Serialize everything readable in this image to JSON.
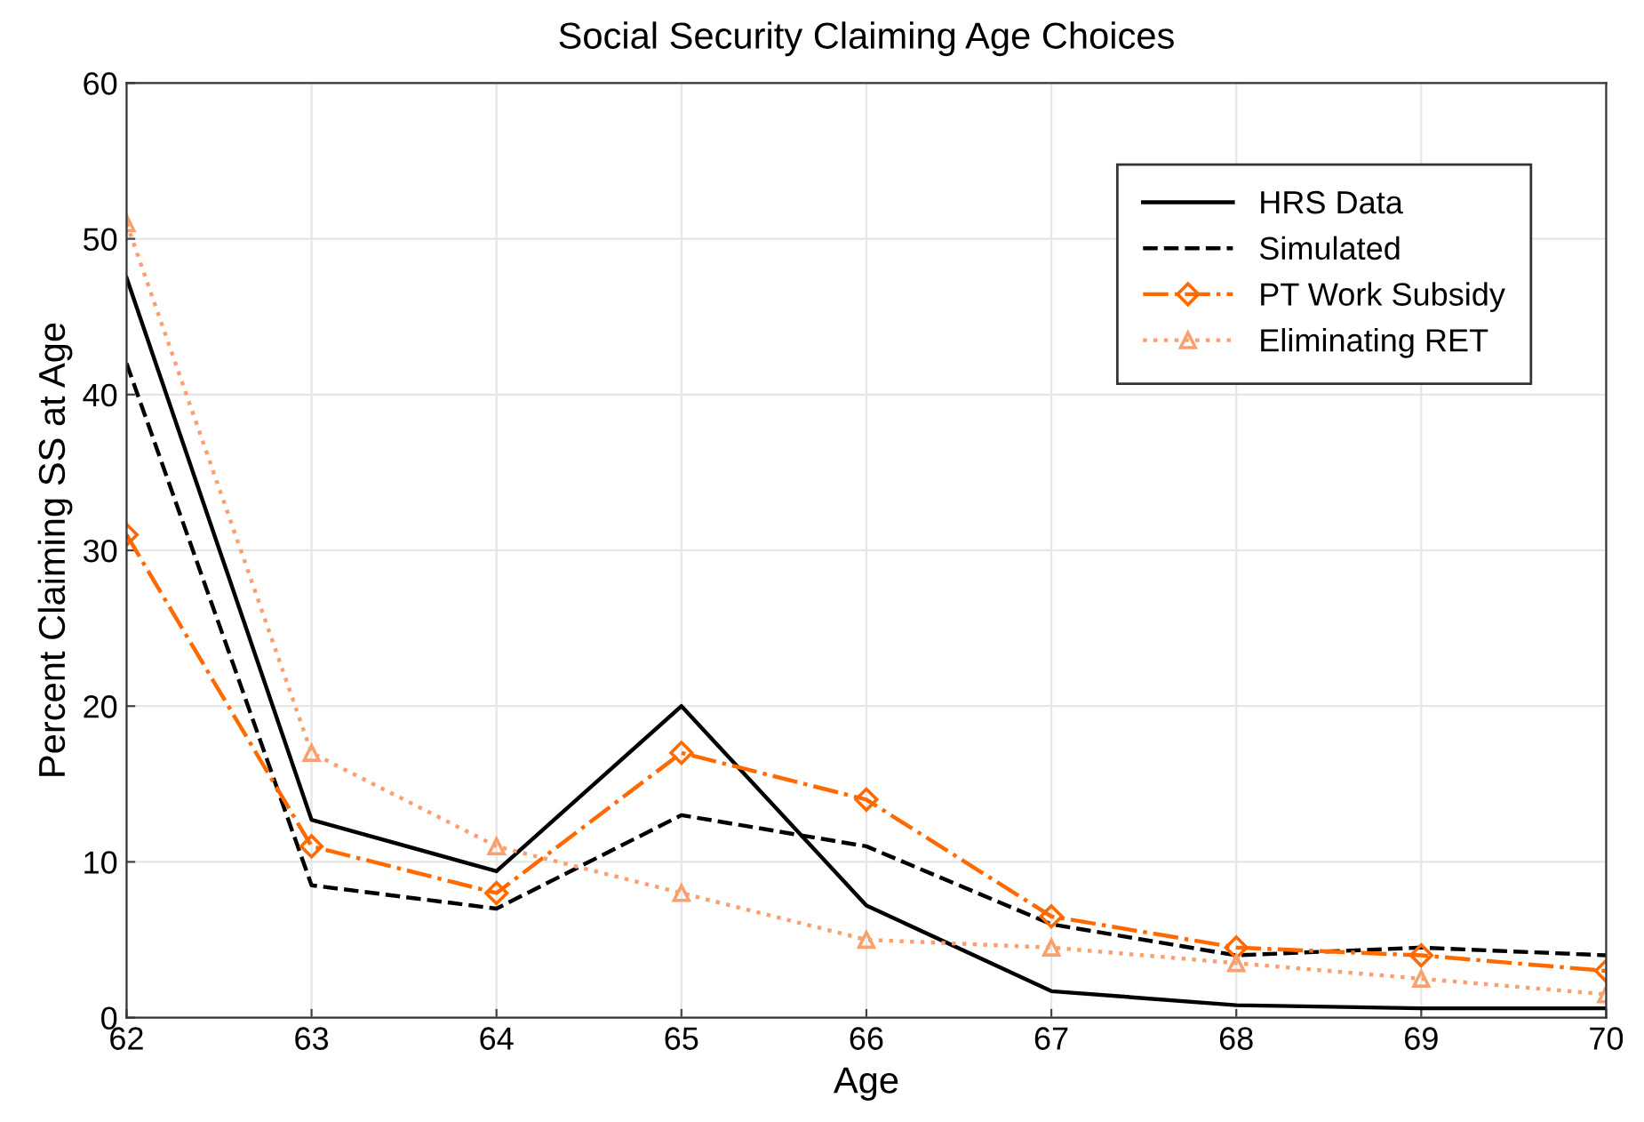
{
  "chart_data": {
    "type": "line",
    "title": "Social Security Claiming Age Choices",
    "xlabel": "Age",
    "ylabel": "Percent Claiming SS at Age",
    "x": [
      62,
      63,
      64,
      65,
      66,
      67,
      68,
      69,
      70
    ],
    "series": [
      {
        "name": "HRS Data",
        "color": "#000000",
        "line_style": "solid",
        "marker": "none",
        "values": [
          47.5,
          12.7,
          9.4,
          20,
          7.2,
          1.7,
          0.8,
          0.6,
          0.6
        ]
      },
      {
        "name": "Simulated",
        "color": "#000000",
        "line_style": "dashed",
        "marker": "none",
        "values": [
          42,
          8.5,
          7,
          13,
          11,
          6,
          4,
          4.5,
          4
        ]
      },
      {
        "name": "PT Work Subsidy",
        "color": "#ff6a00",
        "line_style": "dashdot",
        "marker": "diamond",
        "values": [
          31,
          11,
          8,
          17,
          14,
          6.5,
          4.5,
          4,
          3
        ]
      },
      {
        "name": "Eliminating RET",
        "color": "#f9a070",
        "line_style": "dotted",
        "marker": "triangle",
        "values": [
          51,
          17,
          11,
          8,
          5,
          4.5,
          3.5,
          2.5,
          1.5
        ]
      }
    ],
    "xlim": [
      62,
      70
    ],
    "xticks": [
      62,
      63,
      64,
      65,
      66,
      67,
      68,
      69,
      70
    ],
    "ylim": [
      0,
      60
    ],
    "yticks": [
      0,
      10,
      20,
      30,
      40,
      50,
      60
    ],
    "grid": true,
    "legend": "top right"
  }
}
